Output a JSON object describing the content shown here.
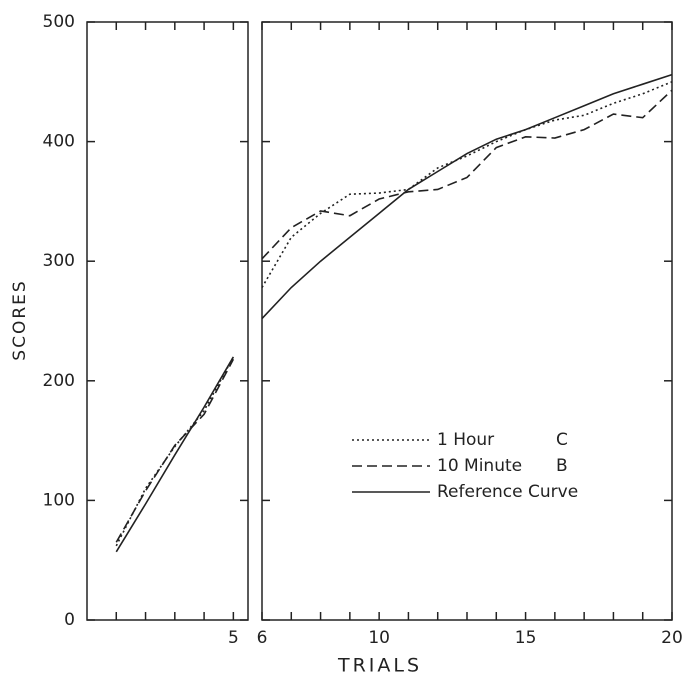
{
  "chart_data": [
    {
      "type": "line",
      "y_label": "SCORES",
      "x_label": "TRIALS",
      "xlim": [
        0,
        5.5
      ],
      "xticks": [
        5
      ],
      "minor_xticks": [
        1,
        2,
        3,
        4
      ],
      "ylim": [
        0,
        500
      ],
      "yticks": [
        0,
        100,
        200,
        300,
        400,
        500
      ],
      "x": [
        1,
        2,
        3,
        4,
        5
      ],
      "series": [
        {
          "dash": "dotted",
          "color": "#222222",
          "values": [
            62,
            110,
            145,
            175,
            220
          ]
        },
        {
          "dash": "dashed",
          "color": "#222222",
          "values": [
            65,
            108,
            146,
            172,
            218
          ]
        },
        {
          "dash": "solid",
          "color": "#222222",
          "values": [
            57,
            97,
            138,
            178,
            220
          ]
        }
      ]
    },
    {
      "type": "line",
      "xlim": [
        6,
        20
      ],
      "xticks": [
        6,
        10,
        15,
        20
      ],
      "minor_xticks": [
        7,
        8,
        9,
        11,
        12,
        13,
        14,
        16,
        17,
        18,
        19
      ],
      "ylim": [
        0,
        500
      ],
      "x": [
        6,
        7,
        8,
        9,
        10,
        11,
        12,
        13,
        14,
        15,
        16,
        17,
        18,
        19,
        20
      ],
      "series": [
        {
          "name": "1 Hour",
          "group": "C",
          "dash": "dotted",
          "color": "#222222",
          "values": [
            278,
            320,
            340,
            356,
            357,
            360,
            378,
            388,
            400,
            410,
            418,
            422,
            432,
            440,
            450
          ]
        },
        {
          "name": "10 Minute",
          "group": "B",
          "dash": "dashed",
          "color": "#222222",
          "values": [
            302,
            328,
            342,
            338,
            352,
            358,
            360,
            370,
            395,
            404,
            403,
            410,
            423,
            420,
            443
          ]
        },
        {
          "name": "Reference Curve",
          "dash": "solid",
          "color": "#222222",
          "values": [
            252,
            278,
            300,
            320,
            340,
            360,
            375,
            390,
            402,
            410,
            420,
            430,
            440,
            448,
            456
          ]
        }
      ]
    }
  ]
}
